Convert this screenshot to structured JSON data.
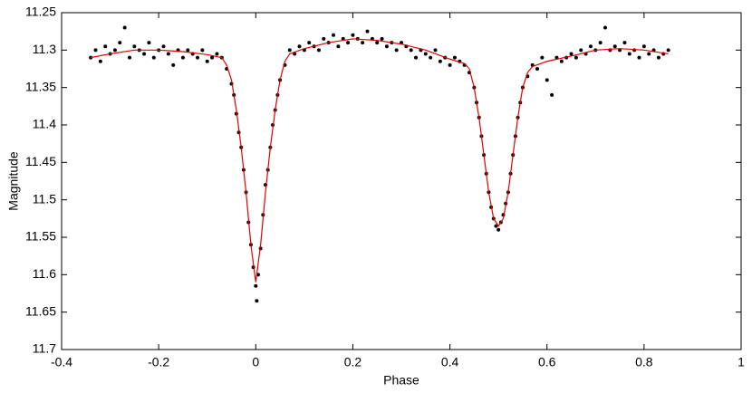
{
  "chart_data": {
    "type": "scatter",
    "xlabel": "Phase",
    "ylabel": "Magnitude",
    "xlim": [
      -0.4,
      1
    ],
    "ylim": [
      11.25,
      11.7
    ],
    "y_inverted": true,
    "grid": false,
    "xticks": [
      -0.4,
      -0.2,
      0,
      0.2,
      0.4,
      0.6,
      0.8,
      1
    ],
    "yticks": [
      11.25,
      11.3,
      11.35,
      11.4,
      11.45,
      11.5,
      11.55,
      11.6,
      11.65,
      11.7
    ],
    "series": [
      {
        "type": "scatter",
        "color": "#000000",
        "x": [
          -0.34,
          -0.33,
          -0.32,
          -0.31,
          -0.3,
          -0.29,
          -0.28,
          -0.27,
          -0.26,
          -0.25,
          -0.24,
          -0.23,
          -0.22,
          -0.21,
          -0.2,
          -0.19,
          -0.18,
          -0.17,
          -0.16,
          -0.15,
          -0.14,
          -0.13,
          -0.12,
          -0.11,
          -0.1,
          -0.09,
          -0.08,
          -0.07,
          -0.06,
          -0.05,
          -0.045,
          -0.04,
          -0.035,
          -0.03,
          -0.025,
          -0.02,
          -0.015,
          -0.01,
          -0.005,
          0,
          0.002,
          0.005,
          0.01,
          0.015,
          0.02,
          0.025,
          0.03,
          0.035,
          0.04,
          0.045,
          0.05,
          0.06,
          0.07,
          0.08,
          0.09,
          0.1,
          0.11,
          0.12,
          0.13,
          0.14,
          0.15,
          0.16,
          0.17,
          0.18,
          0.19,
          0.2,
          0.21,
          0.22,
          0.23,
          0.24,
          0.25,
          0.26,
          0.27,
          0.28,
          0.29,
          0.3,
          0.31,
          0.32,
          0.33,
          0.34,
          0.35,
          0.36,
          0.37,
          0.38,
          0.39,
          0.4,
          0.41,
          0.42,
          0.43,
          0.44,
          0.45,
          0.455,
          0.46,
          0.465,
          0.47,
          0.475,
          0.48,
          0.485,
          0.49,
          0.495,
          0.5,
          0.505,
          0.51,
          0.515,
          0.52,
          0.525,
          0.53,
          0.535,
          0.54,
          0.545,
          0.55,
          0.56,
          0.57,
          0.58,
          0.59,
          0.6,
          0.61,
          0.62,
          0.63,
          0.64,
          0.65,
          0.66,
          0.67,
          0.68,
          0.69,
          0.7,
          0.71,
          0.72,
          0.73,
          0.74,
          0.75,
          0.76,
          0.77,
          0.78,
          0.79,
          0.8,
          0.81,
          0.82,
          0.83,
          0.84,
          0.85
        ],
        "values": [
          11.31,
          11.3,
          11.315,
          11.295,
          11.305,
          11.3,
          11.29,
          11.27,
          11.31,
          11.295,
          11.3,
          11.305,
          11.29,
          11.31,
          11.3,
          11.295,
          11.305,
          11.32,
          11.3,
          11.31,
          11.3,
          11.305,
          11.31,
          11.3,
          11.315,
          11.31,
          11.305,
          11.31,
          11.325,
          11.345,
          11.36,
          11.385,
          11.41,
          11.43,
          11.46,
          11.49,
          11.53,
          11.56,
          11.59,
          11.615,
          11.635,
          11.6,
          11.565,
          11.52,
          11.48,
          11.46,
          11.43,
          11.4,
          11.38,
          11.36,
          11.34,
          11.32,
          11.3,
          11.305,
          11.295,
          11.3,
          11.29,
          11.295,
          11.3,
          11.285,
          11.29,
          11.28,
          11.295,
          11.285,
          11.29,
          11.28,
          11.285,
          11.29,
          11.275,
          11.285,
          11.29,
          11.285,
          11.295,
          11.29,
          11.3,
          11.29,
          11.295,
          11.3,
          11.31,
          11.3,
          11.305,
          11.31,
          11.3,
          11.315,
          11.31,
          11.32,
          11.31,
          11.315,
          11.32,
          11.33,
          11.35,
          11.37,
          11.39,
          11.415,
          11.44,
          11.465,
          11.49,
          11.51,
          11.525,
          11.535,
          11.54,
          11.53,
          11.52,
          11.505,
          11.49,
          11.465,
          11.44,
          11.415,
          11.39,
          11.37,
          11.35,
          11.335,
          11.32,
          11.325,
          11.31,
          11.34,
          11.36,
          11.31,
          11.315,
          11.31,
          11.305,
          11.31,
          11.3,
          11.305,
          11.295,
          11.3,
          11.29,
          11.27,
          11.3,
          11.295,
          11.3,
          11.29,
          11.305,
          11.3,
          11.31,
          11.295,
          11.305,
          11.3,
          11.31,
          11.305,
          11.3
        ]
      },
      {
        "type": "line",
        "color": "#e00000",
        "x": [
          -0.34,
          -0.3,
          -0.25,
          -0.2,
          -0.15,
          -0.1,
          -0.07,
          -0.06,
          -0.05,
          -0.04,
          -0.03,
          -0.02,
          -0.01,
          0,
          0.01,
          0.02,
          0.03,
          0.04,
          0.05,
          0.06,
          0.07,
          0.1,
          0.15,
          0.2,
          0.25,
          0.3,
          0.35,
          0.4,
          0.43,
          0.44,
          0.45,
          0.46,
          0.47,
          0.48,
          0.49,
          0.5,
          0.51,
          0.52,
          0.53,
          0.54,
          0.55,
          0.56,
          0.57,
          0.6,
          0.65,
          0.7,
          0.75,
          0.8,
          0.85
        ],
        "values": [
          11.31,
          11.305,
          11.3,
          11.3,
          11.302,
          11.306,
          11.31,
          11.32,
          11.34,
          11.38,
          11.43,
          11.49,
          11.56,
          11.61,
          11.56,
          11.49,
          11.43,
          11.38,
          11.34,
          11.315,
          11.305,
          11.298,
          11.29,
          11.285,
          11.287,
          11.292,
          11.3,
          11.312,
          11.318,
          11.325,
          11.35,
          11.39,
          11.44,
          11.49,
          11.525,
          11.535,
          11.525,
          11.49,
          11.44,
          11.39,
          11.35,
          11.33,
          11.322,
          11.315,
          11.308,
          11.3,
          11.298,
          11.3,
          11.305
        ]
      }
    ]
  }
}
